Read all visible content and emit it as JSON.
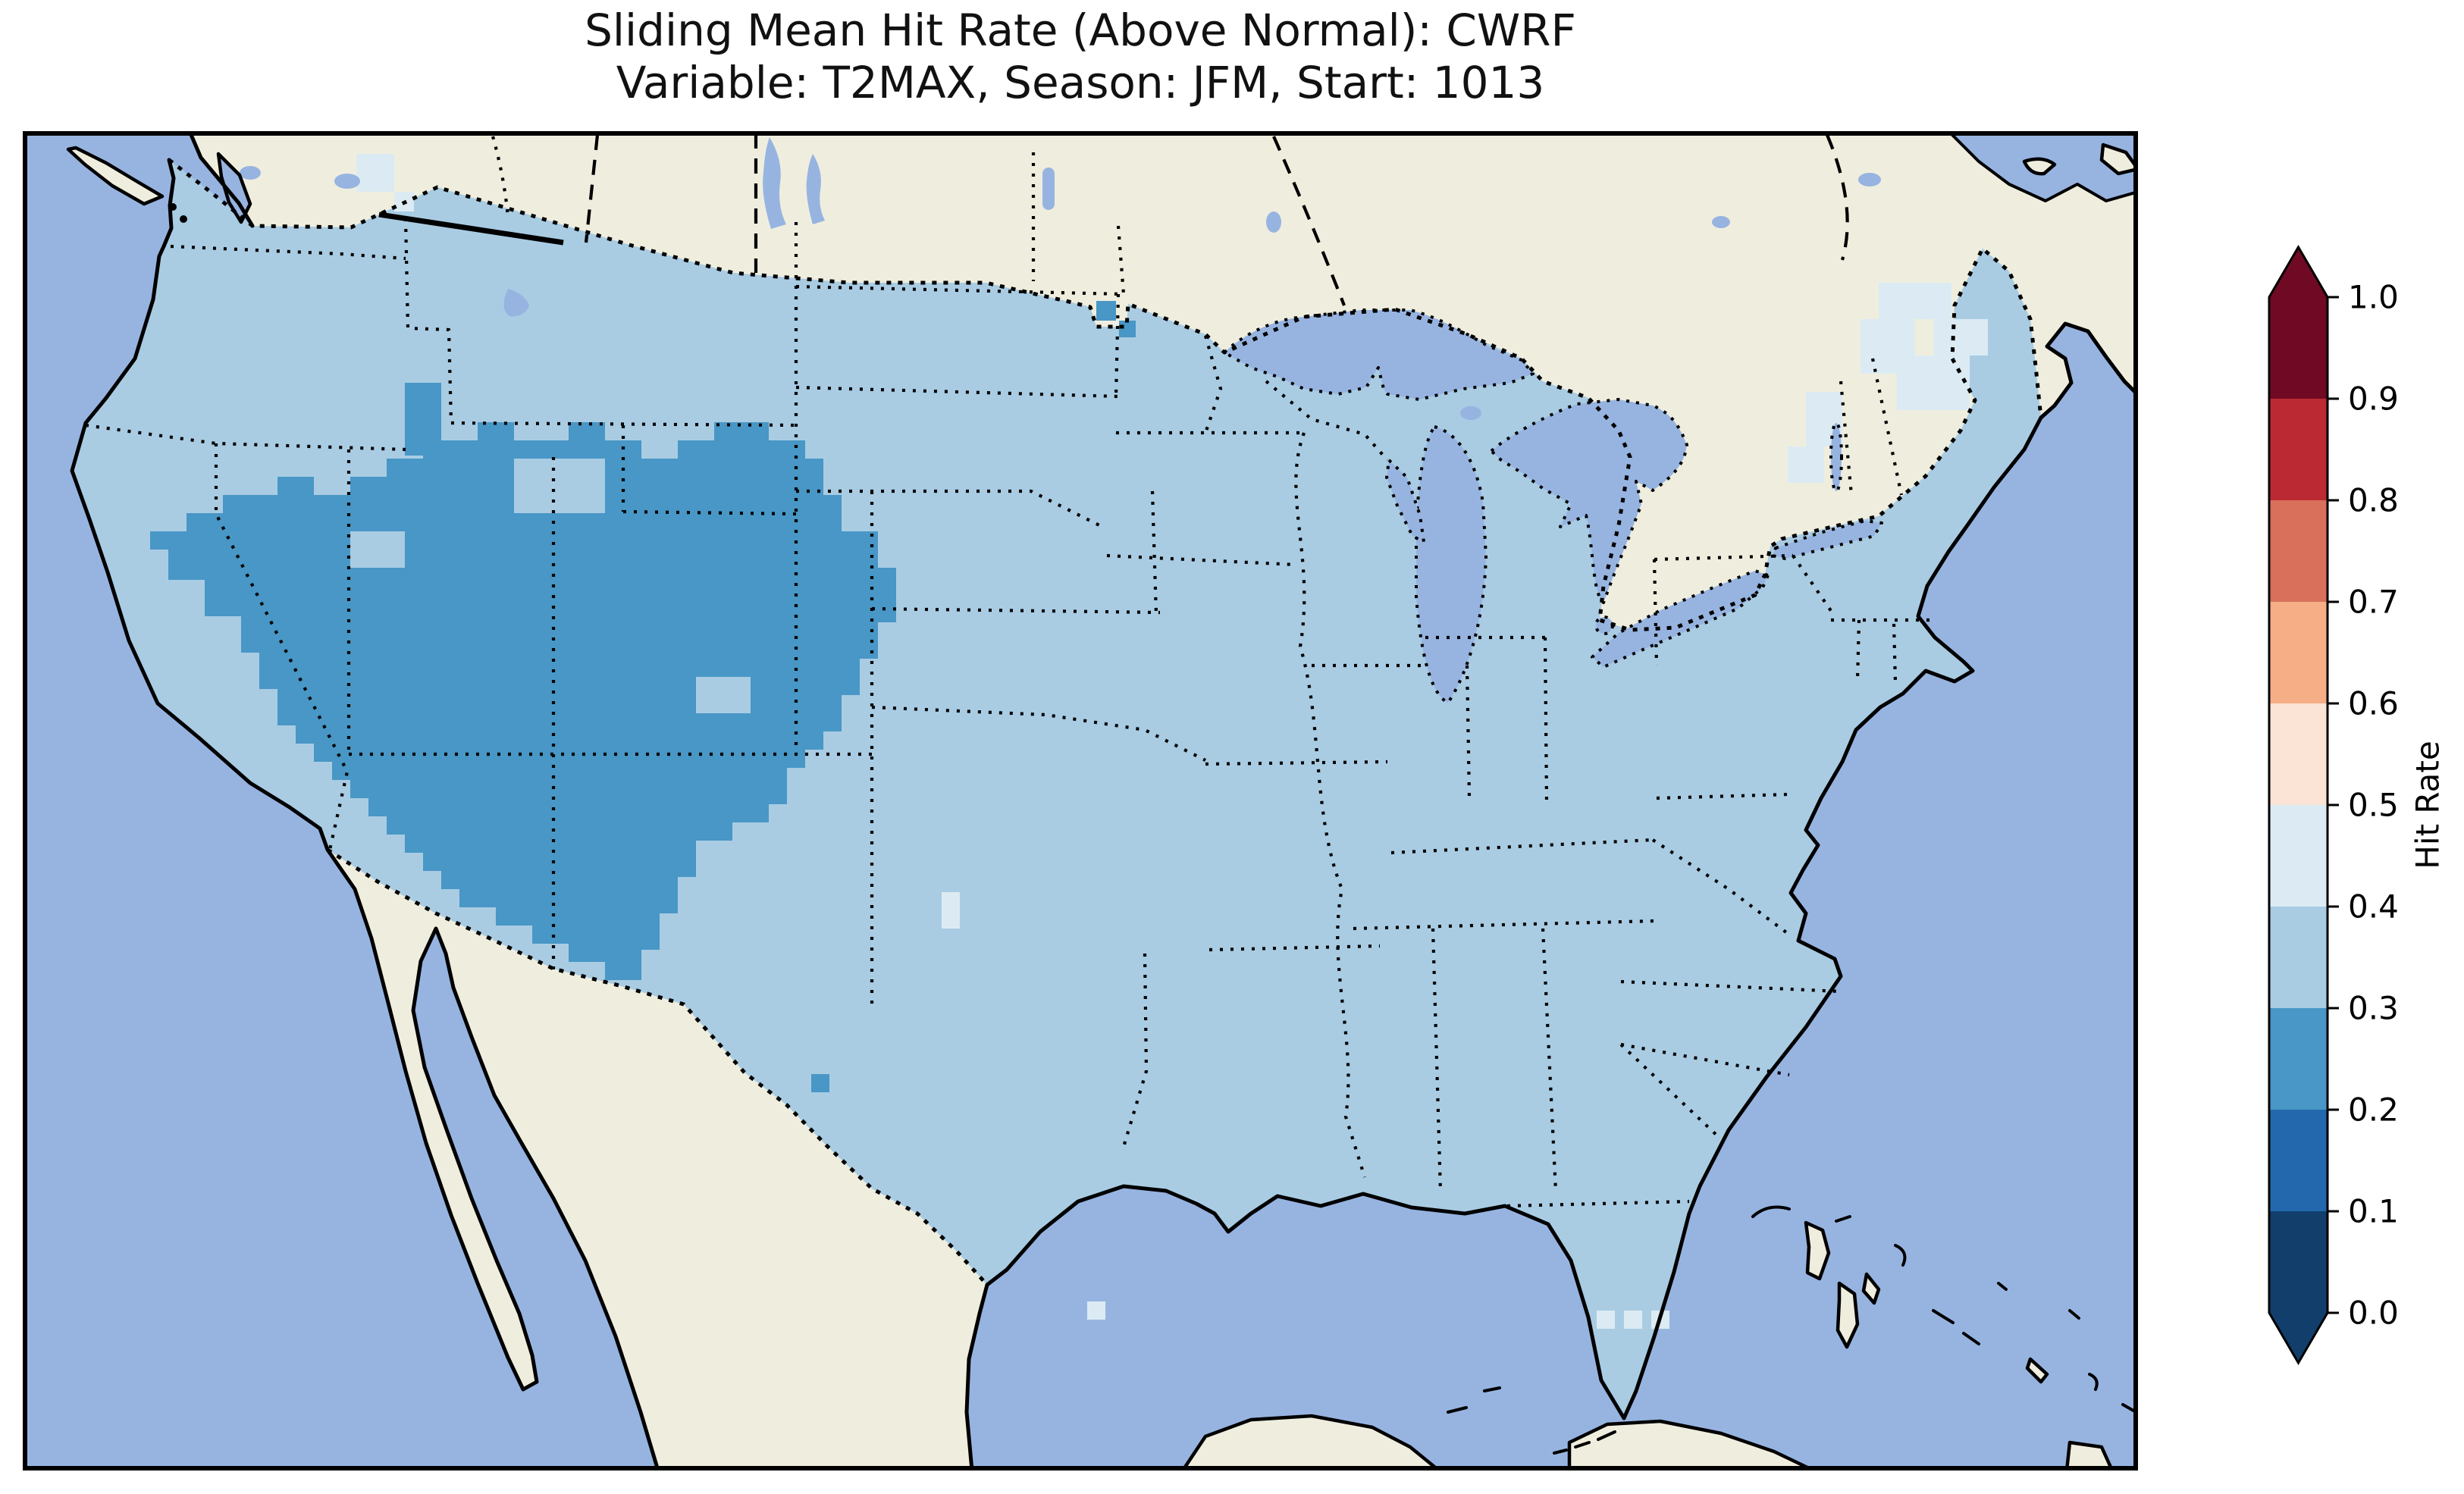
{
  "title": {
    "line1": "Sliding Mean Hit Rate (Above Normal): CWRF",
    "line2": "Variable: T2MAX, Season: JFM, Start: 1013"
  },
  "palette": {
    "page_background": "#ffffff",
    "ocean_and_lakes": "#97b4e1",
    "non_us_land": "#efeede",
    "line_color": "#000000"
  },
  "chart_data": {
    "type": "heatmap",
    "subtype": "geographic choropleth of gridded hit-rate values over the contiguous United States",
    "title": "Sliding Mean Hit Rate (Above Normal): CWRF",
    "subtitle": "Variable: T2MAX, Season: JFM, Start: 1013",
    "model": "CWRF",
    "metric": "Sliding Mean Hit Rate (Above Normal)",
    "variable": "T2MAX",
    "season": "JFM",
    "start": "1013",
    "colorbar": {
      "label": "Hit Rate",
      "orientation": "vertical",
      "position": "right",
      "extend": "both",
      "ticks": [
        1.0,
        0.9,
        0.8,
        0.7,
        0.6,
        0.5,
        0.4,
        0.3,
        0.2,
        0.1,
        0.0
      ],
      "bins": [
        {
          "range": [
            0.0,
            0.1
          ],
          "color": "#123e6c"
        },
        {
          "range": [
            0.1,
            0.2
          ],
          "color": "#2368ac"
        },
        {
          "range": [
            0.2,
            0.3
          ],
          "color": "#4897c6"
        },
        {
          "range": [
            0.3,
            0.4
          ],
          "color": "#a9cce3"
        },
        {
          "range": [
            0.4,
            0.5
          ],
          "color": "#dcebf3"
        },
        {
          "range": [
            0.5,
            0.6
          ],
          "color": "#fbe3d5"
        },
        {
          "range": [
            0.6,
            0.7
          ],
          "color": "#f5ae85"
        },
        {
          "range": [
            0.7,
            0.8
          ],
          "color": "#d8705c"
        },
        {
          "range": [
            0.8,
            0.9
          ],
          "color": "#bb2a33"
        },
        {
          "range": [
            0.9,
            1.0
          ],
          "color": "#700a24"
        }
      ],
      "under_color": "#123e6c",
      "over_color": "#700a24"
    },
    "map_reading": [
      {
        "region": "Most of the contiguous United States",
        "hit_rate_bin": [
          0.3,
          0.4
        ]
      },
      {
        "region": "Great Basin / Southwest (Nevada, Utah, Arizona, New Mexico, western Colorado) extending northeast through Wyoming into the western High Plains (western Kansas / Oklahoma panhandle)",
        "hit_rate_bin": [
          0.2,
          0.3
        ]
      },
      {
        "region": "Coastal Maine and parts of northern New England",
        "hit_rate_bin": [
          0.4,
          0.5
        ]
      },
      {
        "region": "Scattered single cells (Puget Sound area, central/south Texas, Florida Keys vicinity)",
        "hit_rate_bin": [
          0.4,
          0.5
        ]
      }
    ],
    "basemap": {
      "ocean_and_great_lakes_color": "#97b4e1",
      "non_us_land_color": "#efeede",
      "coastlines": "solid black",
      "state_and_province_borders": "dotted black",
      "international_borders": "dotted/dashed black",
      "axes_frame": "solid black rectangle"
    }
  }
}
